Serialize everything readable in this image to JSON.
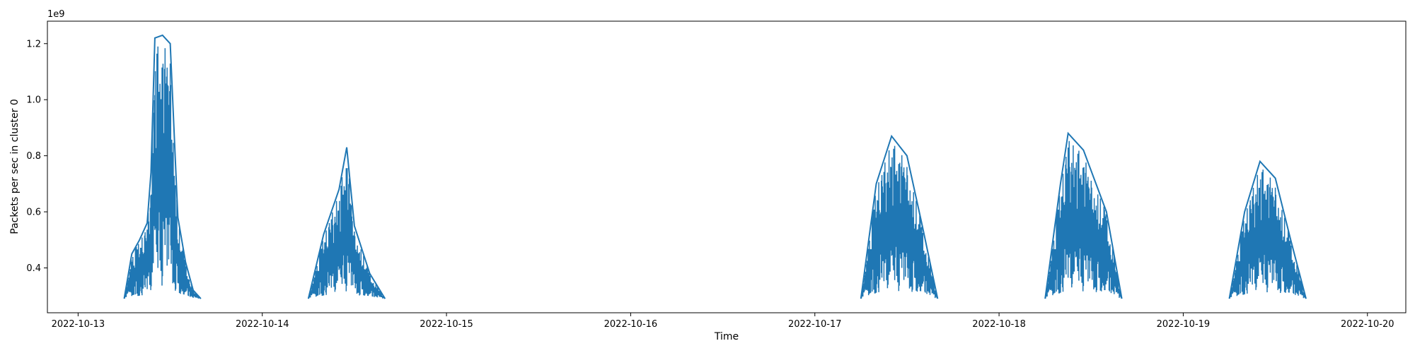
{
  "chart_data": {
    "type": "line",
    "xlabel": "Time",
    "ylabel": "Packets per sec in cluster 0",
    "y_offset_label": "1e9",
    "y_scale": 1000000000,
    "x_range": [
      "2022-10-12T20:00",
      "2022-10-20T05:00"
    ],
    "ylim": [
      0.24,
      1.28
    ],
    "x_ticks": [
      "2022-10-13",
      "2022-10-14",
      "2022-10-15",
      "2022-10-16",
      "2022-10-17",
      "2022-10-18",
      "2022-10-19",
      "2022-10-20"
    ],
    "y_ticks": [
      0.4,
      0.6,
      0.8,
      1.0,
      1.2
    ],
    "y_tick_labels": [
      "0.4",
      "0.6",
      "0.8",
      "1.0",
      "1.2"
    ],
    "grid": false,
    "series_color": "#1f77b4",
    "series": [
      {
        "points": [
          [
            "2022-10-13T06:00",
            0.29
          ],
          [
            "2022-10-13T07:00",
            0.45
          ],
          [
            "2022-10-13T08:00",
            0.5
          ],
          [
            "2022-10-13T09:00",
            0.56
          ],
          [
            "2022-10-13T09:30",
            0.74
          ],
          [
            "2022-10-13T10:00",
            1.22
          ],
          [
            "2022-10-13T11:00",
            1.23
          ],
          [
            "2022-10-13T12:00",
            1.2
          ],
          [
            "2022-10-13T13:00",
            0.58
          ],
          [
            "2022-10-13T14:00",
            0.42
          ],
          [
            "2022-10-13T15:00",
            0.32
          ],
          [
            "2022-10-13T16:00",
            0.29
          ],
          [
            "2022-10-14T06:00",
            0.29
          ],
          [
            "2022-10-14T08:00",
            0.52
          ],
          [
            "2022-10-14T10:00",
            0.68
          ],
          [
            "2022-10-14T11:00",
            0.83
          ],
          [
            "2022-10-14T12:00",
            0.55
          ],
          [
            "2022-10-14T14:00",
            0.38
          ],
          [
            "2022-10-14T16:00",
            0.29
          ],
          [
            "2022-10-17T06:00",
            0.29
          ],
          [
            "2022-10-17T08:00",
            0.7
          ],
          [
            "2022-10-17T10:00",
            0.87
          ],
          [
            "2022-10-17T12:00",
            0.8
          ],
          [
            "2022-10-17T14:00",
            0.55
          ],
          [
            "2022-10-17T16:00",
            0.29
          ],
          [
            "2022-10-18T06:00",
            0.29
          ],
          [
            "2022-10-18T08:00",
            0.7
          ],
          [
            "2022-10-18T09:00",
            0.88
          ],
          [
            "2022-10-18T11:00",
            0.82
          ],
          [
            "2022-10-18T14:00",
            0.6
          ],
          [
            "2022-10-18T16:00",
            0.29
          ],
          [
            "2022-10-19T06:00",
            0.29
          ],
          [
            "2022-10-19T08:00",
            0.6
          ],
          [
            "2022-10-19T10:00",
            0.78
          ],
          [
            "2022-10-19T12:00",
            0.72
          ],
          [
            "2022-10-19T14:00",
            0.5
          ],
          [
            "2022-10-19T16:00",
            0.29
          ]
        ]
      }
    ]
  }
}
